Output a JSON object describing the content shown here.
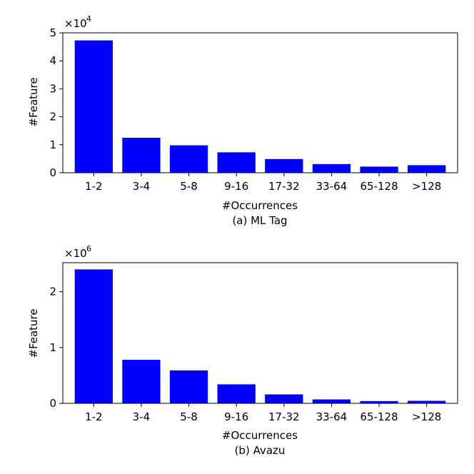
{
  "chart_data": [
    {
      "type": "bar",
      "categories": [
        "1-2",
        "3-4",
        "5-8",
        "9-16",
        "17-32",
        "33-64",
        "65-128",
        ">128"
      ],
      "values": [
        47300,
        12500,
        9800,
        7300,
        4900,
        3100,
        2200,
        2700
      ],
      "xlabel": "#Occurrences",
      "ylabel": "#Feature",
      "caption": "(a) ML Tag",
      "ylim": [
        0,
        50000
      ],
      "yticks": [
        0,
        10000,
        20000,
        30000,
        40000,
        50000
      ],
      "ytick_labels": [
        "0",
        "1",
        "2",
        "3",
        "4",
        "5"
      ],
      "offset_text": {
        "base": "×10",
        "exponent": "4"
      },
      "bar_color": "#0000ff",
      "grid": false
    },
    {
      "type": "bar",
      "categories": [
        "1-2",
        "3-4",
        "5-8",
        "9-16",
        "17-32",
        "33-64",
        "65-128",
        ">128"
      ],
      "values": [
        2400000,
        780000,
        590000,
        340000,
        160000,
        70000,
        40000,
        45000
      ],
      "xlabel": "#Occurrences",
      "ylabel": "#Feature",
      "caption": "(b) Avazu",
      "ylim": [
        0,
        2520000
      ],
      "yticks": [
        0,
        1000000,
        2000000
      ],
      "ytick_labels": [
        "0",
        "1",
        "2"
      ],
      "offset_text": {
        "base": "×10",
        "exponent": "6"
      },
      "bar_color": "#0000ff",
      "grid": false
    }
  ]
}
